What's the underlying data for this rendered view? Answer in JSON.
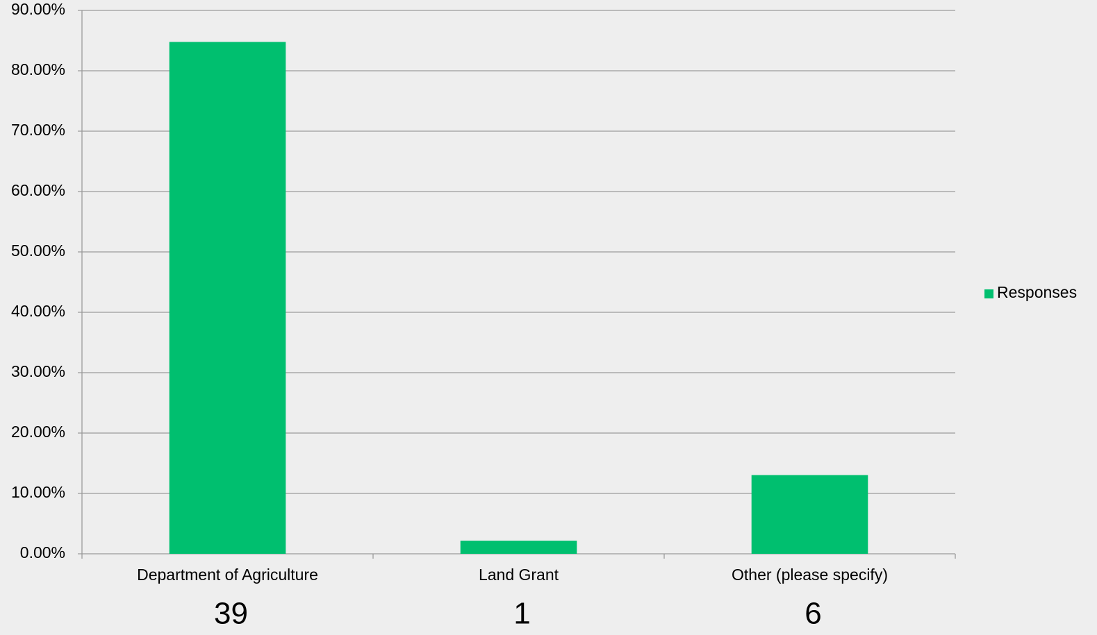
{
  "chart_data": {
    "type": "bar",
    "categories": [
      "Department of Agriculture",
      "Land Grant",
      "Other (please specify)"
    ],
    "series": [
      {
        "name": "Responses",
        "color": "#00bf6f",
        "values": [
          84.78,
          2.17,
          13.04
        ]
      }
    ],
    "counts": [
      39,
      1,
      6
    ],
    "ylim": [
      0,
      90
    ],
    "yticks": [
      {
        "value": 0,
        "label": "0.00%"
      },
      {
        "value": 10,
        "label": "10.00%"
      },
      {
        "value": 20,
        "label": "20.00%"
      },
      {
        "value": 30,
        "label": "30.00%"
      },
      {
        "value": 40,
        "label": "40.00%"
      },
      {
        "value": 50,
        "label": "50.00%"
      },
      {
        "value": 60,
        "label": "60.00%"
      },
      {
        "value": 70,
        "label": "70.00%"
      },
      {
        "value": 80,
        "label": "80.00%"
      },
      {
        "value": 90,
        "label": "90.00%"
      }
    ],
    "grid": true,
    "legend": "right"
  }
}
